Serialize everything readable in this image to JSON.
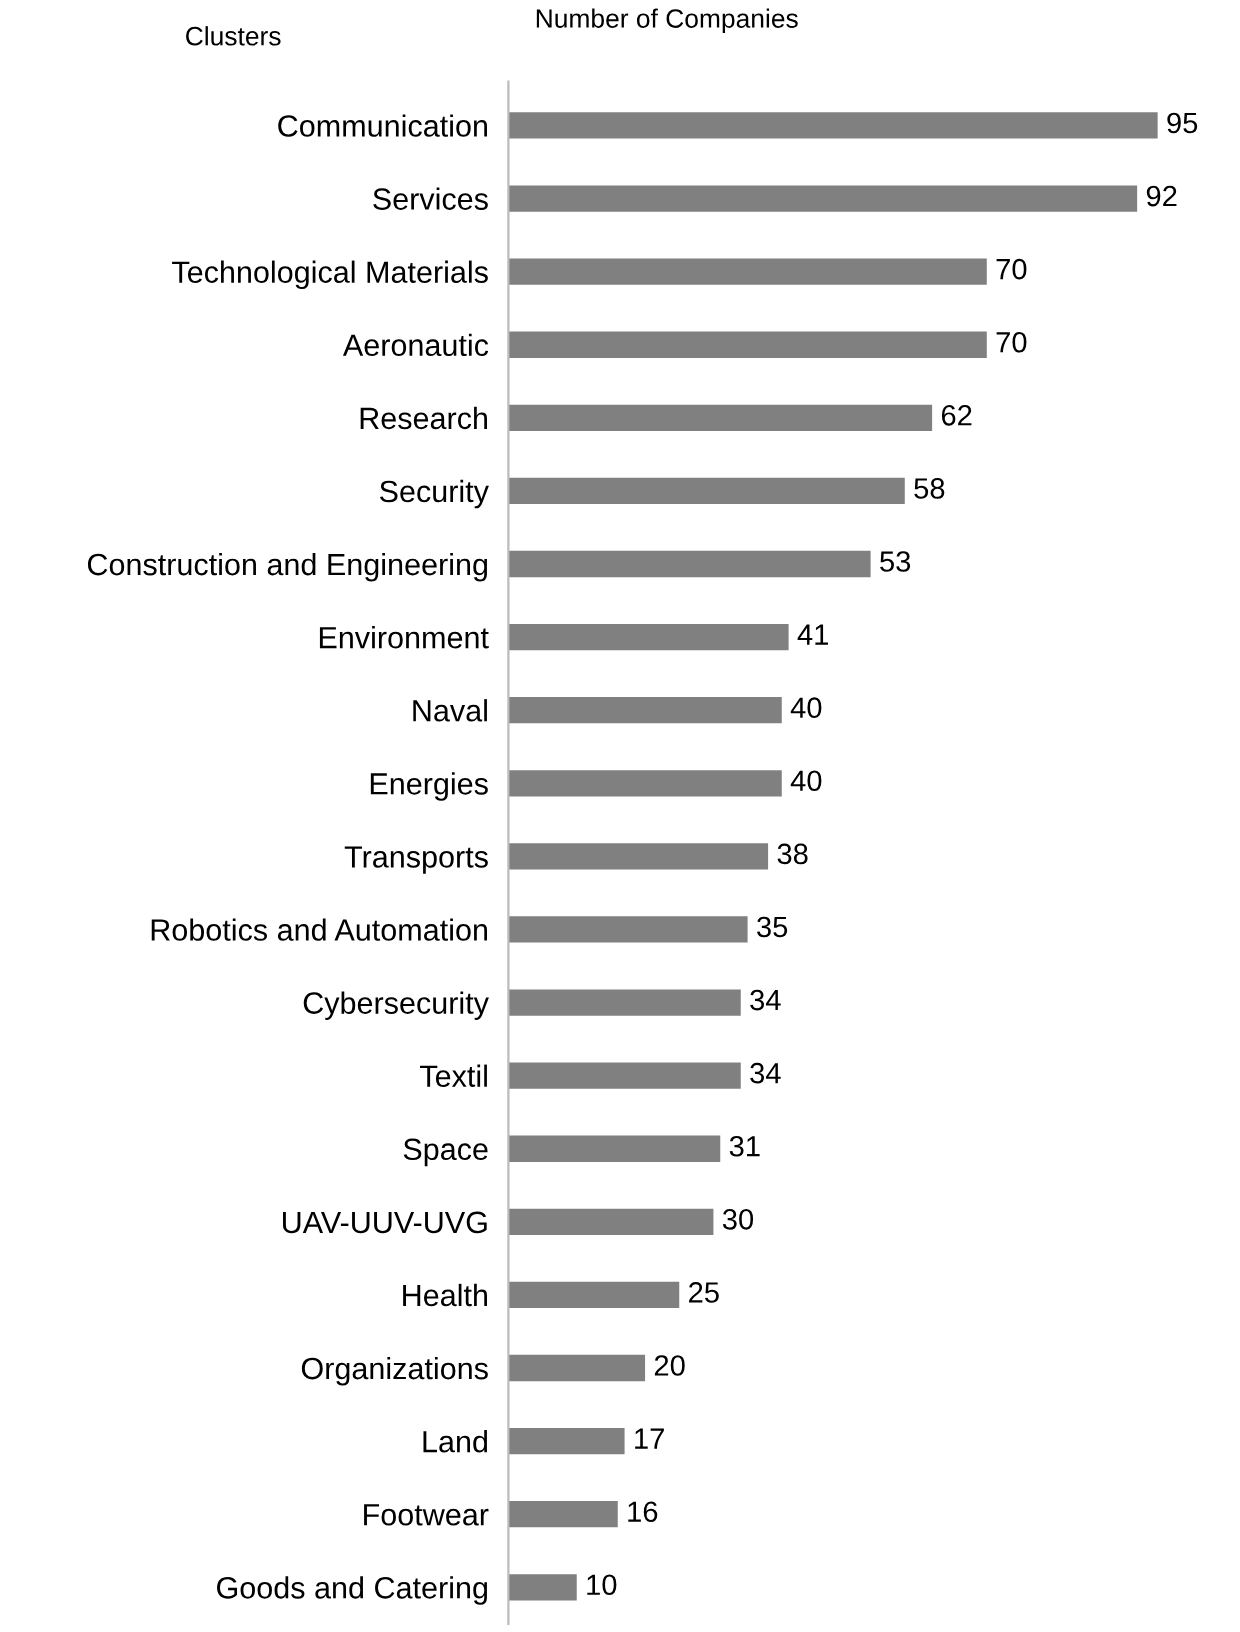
{
  "chart_data": {
    "type": "bar",
    "orientation": "horizontal",
    "xlabel": "Number of Companies",
    "ylabel": "Clusters",
    "categories": [
      "Communication",
      "Services",
      "Technological Materials",
      "Aeronautic",
      "Research",
      "Security",
      "Construction and Engineering",
      "Environment",
      "Naval",
      "Energies",
      "Transports",
      "Robotics and Automation",
      "Cybersecurity",
      "Textil",
      "Space",
      "UAV-UUV-UVG",
      "Health",
      "Organizations",
      "Land",
      "Footwear",
      "Goods and Catering"
    ],
    "values": [
      95,
      92,
      70,
      70,
      62,
      58,
      53,
      41,
      40,
      40,
      38,
      35,
      34,
      34,
      31,
      30,
      25,
      20,
      17,
      16,
      10
    ],
    "color": "#808080",
    "data_labels": true,
    "tick_labels": "y",
    "grid": false,
    "legend": false
  }
}
